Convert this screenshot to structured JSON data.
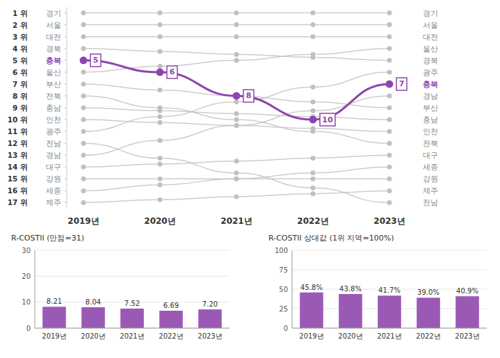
{
  "chart_data": [
    {
      "type": "bump",
      "categories": [
        "2019년",
        "2020년",
        "2021년",
        "2022년",
        "2023년"
      ],
      "ylim": [
        17.5,
        0.5
      ],
      "yticks": [
        {
          "value": 1,
          "label": "1 위"
        },
        {
          "value": 2,
          "label": "2 위"
        },
        {
          "value": 3,
          "label": "3 위"
        },
        {
          "value": 4,
          "label": "4 위"
        },
        {
          "value": 5,
          "label": "5 위"
        },
        {
          "value": 6,
          "label": "6 위"
        },
        {
          "value": 7,
          "label": "7 위"
        },
        {
          "value": 8,
          "label": "8 위"
        },
        {
          "value": 9,
          "label": "9 위"
        },
        {
          "value": 10,
          "label": "10 위"
        },
        {
          "value": 11,
          "label": "11 위"
        },
        {
          "value": 12,
          "label": "12 위"
        },
        {
          "value": 13,
          "label": "13 위"
        },
        {
          "value": 14,
          "label": "14 위"
        },
        {
          "value": 15,
          "label": "15 위"
        },
        {
          "value": 16,
          "label": "16 위"
        },
        {
          "value": 17,
          "label": "17 위"
        }
      ],
      "series": [
        {
          "name": "경기",
          "color": "#c0c0c0",
          "values": [
            1,
            1,
            1,
            1,
            1
          ]
        },
        {
          "name": "서울",
          "color": "#c0c0c0",
          "values": [
            2,
            2,
            2,
            2,
            2
          ]
        },
        {
          "name": "대전",
          "color": "#c0c0c0",
          "values": [
            3,
            3,
            3,
            3,
            3
          ]
        },
        {
          "name": "경북",
          "color": "#c0c0c0",
          "values": [
            4,
            4.25,
            4.5,
            4.75,
            5
          ]
        },
        {
          "name": "충북",
          "color": "#8e44ad",
          "values": [
            5,
            6,
            8,
            10,
            7
          ],
          "data_labels": true
        },
        {
          "name": "울산",
          "color": "#c0c0c0",
          "values": [
            6,
            5.5,
            5,
            4.5,
            4
          ]
        },
        {
          "name": "부산",
          "color": "#c0c0c0",
          "values": [
            7,
            7.5,
            8,
            8.5,
            9
          ]
        },
        {
          "name": "전북",
          "color": "#c0c0c0",
          "values": [
            8,
            9,
            10,
            11,
            12
          ]
        },
        {
          "name": "충남",
          "color": "#c0c0c0",
          "values": [
            9,
            9.25,
            9.5,
            9.75,
            10
          ]
        },
        {
          "name": "인천",
          "color": "#c0c0c0",
          "values": [
            10,
            10.25,
            10.5,
            10.75,
            11
          ]
        },
        {
          "name": "광주",
          "color": "#c0c0c0",
          "values": [
            11,
            9.75,
            8.5,
            7.25,
            6
          ]
        },
        {
          "name": "전남",
          "color": "#c0c0c0",
          "values": [
            12,
            13.25,
            14.5,
            15.75,
            17
          ]
        },
        {
          "name": "경남",
          "color": "#c0c0c0",
          "values": [
            13,
            11.75,
            10.5,
            9.25,
            8
          ]
        },
        {
          "name": "대구",
          "color": "#c0c0c0",
          "values": [
            14,
            13.75,
            13.5,
            13.25,
            13
          ]
        },
        {
          "name": "강원",
          "color": "#c0c0c0",
          "values": [
            15,
            15,
            15,
            15,
            15
          ]
        },
        {
          "name": "세종",
          "color": "#c0c0c0",
          "values": [
            16,
            15.5,
            15,
            14.5,
            14
          ]
        },
        {
          "name": "제주",
          "color": "#c0c0c0",
          "values": [
            17,
            16.75,
            16.5,
            16.25,
            16
          ]
        }
      ]
    },
    {
      "type": "bar",
      "categories": [
        "2019년",
        "2020년",
        "2021년",
        "2022년",
        "2023년"
      ],
      "values": [
        8.21,
        8.04,
        7.52,
        6.69,
        7.2
      ],
      "value_labels": [
        "8.21",
        "8.04",
        "7.52",
        "6.69",
        "7.20"
      ],
      "color": "#9b59b6",
      "y_label": "R-COSTII (만점=31)",
      "ylim": [
        0,
        30
      ],
      "yticks": [
        0,
        10,
        20,
        30
      ],
      "data_labels": true
    },
    {
      "type": "bar",
      "categories": [
        "2019년",
        "2020년",
        "2021년",
        "2022년",
        "2023년"
      ],
      "values": [
        45.8,
        43.8,
        41.7,
        39.0,
        40.9
      ],
      "value_labels": [
        "45.8%",
        "43.8%",
        "41.7%",
        "39.0%",
        "40.9%"
      ],
      "color": "#9b59b6",
      "y_label": "R-COSTII 상대값 (1위 지역=100%)",
      "ylim": [
        0,
        100
      ],
      "yticks": [
        0,
        25,
        50,
        75,
        100
      ],
      "data_labels": true
    }
  ]
}
